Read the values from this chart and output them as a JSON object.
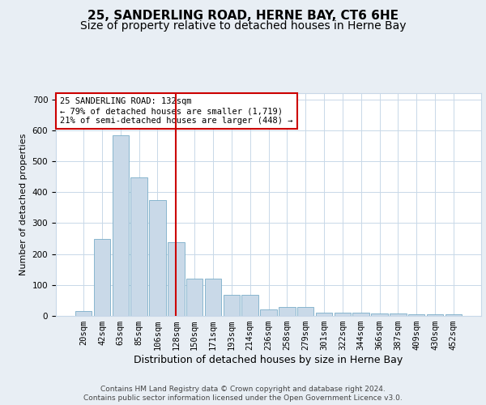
{
  "title1": "25, SANDERLING ROAD, HERNE BAY, CT6 6HE",
  "title2": "Size of property relative to detached houses in Herne Bay",
  "xlabel": "Distribution of detached houses by size in Herne Bay",
  "ylabel": "Number of detached properties",
  "categories": [
    "20sqm",
    "42sqm",
    "63sqm",
    "85sqm",
    "106sqm",
    "128sqm",
    "150sqm",
    "171sqm",
    "193sqm",
    "214sqm",
    "236sqm",
    "258sqm",
    "279sqm",
    "301sqm",
    "322sqm",
    "344sqm",
    "366sqm",
    "387sqm",
    "409sqm",
    "430sqm",
    "452sqm"
  ],
  "values": [
    15,
    248,
    585,
    448,
    375,
    238,
    120,
    120,
    67,
    67,
    20,
    28,
    28,
    10,
    10,
    10,
    9,
    9,
    6,
    6,
    4
  ],
  "bar_color": "#c9d9e8",
  "bar_edge_color": "#7aaec8",
  "vline_x": 5,
  "vline_color": "#cc0000",
  "annotation_text": "25 SANDERLING ROAD: 132sqm\n← 79% of detached houses are smaller (1,719)\n21% of semi-detached houses are larger (448) →",
  "annotation_box_color": "#ffffff",
  "annotation_box_edge": "#cc0000",
  "footer1": "Contains HM Land Registry data © Crown copyright and database right 2024.",
  "footer2": "Contains public sector information licensed under the Open Government Licence v3.0.",
  "bg_color": "#e8eef4",
  "plot_bg_color": "#ffffff",
  "grid_color": "#c8d8e8",
  "ylim": [
    0,
    720
  ],
  "title1_fontsize": 11,
  "title2_fontsize": 10,
  "xlabel_fontsize": 9,
  "ylabel_fontsize": 8,
  "tick_fontsize": 7.5,
  "footer_fontsize": 6.5
}
